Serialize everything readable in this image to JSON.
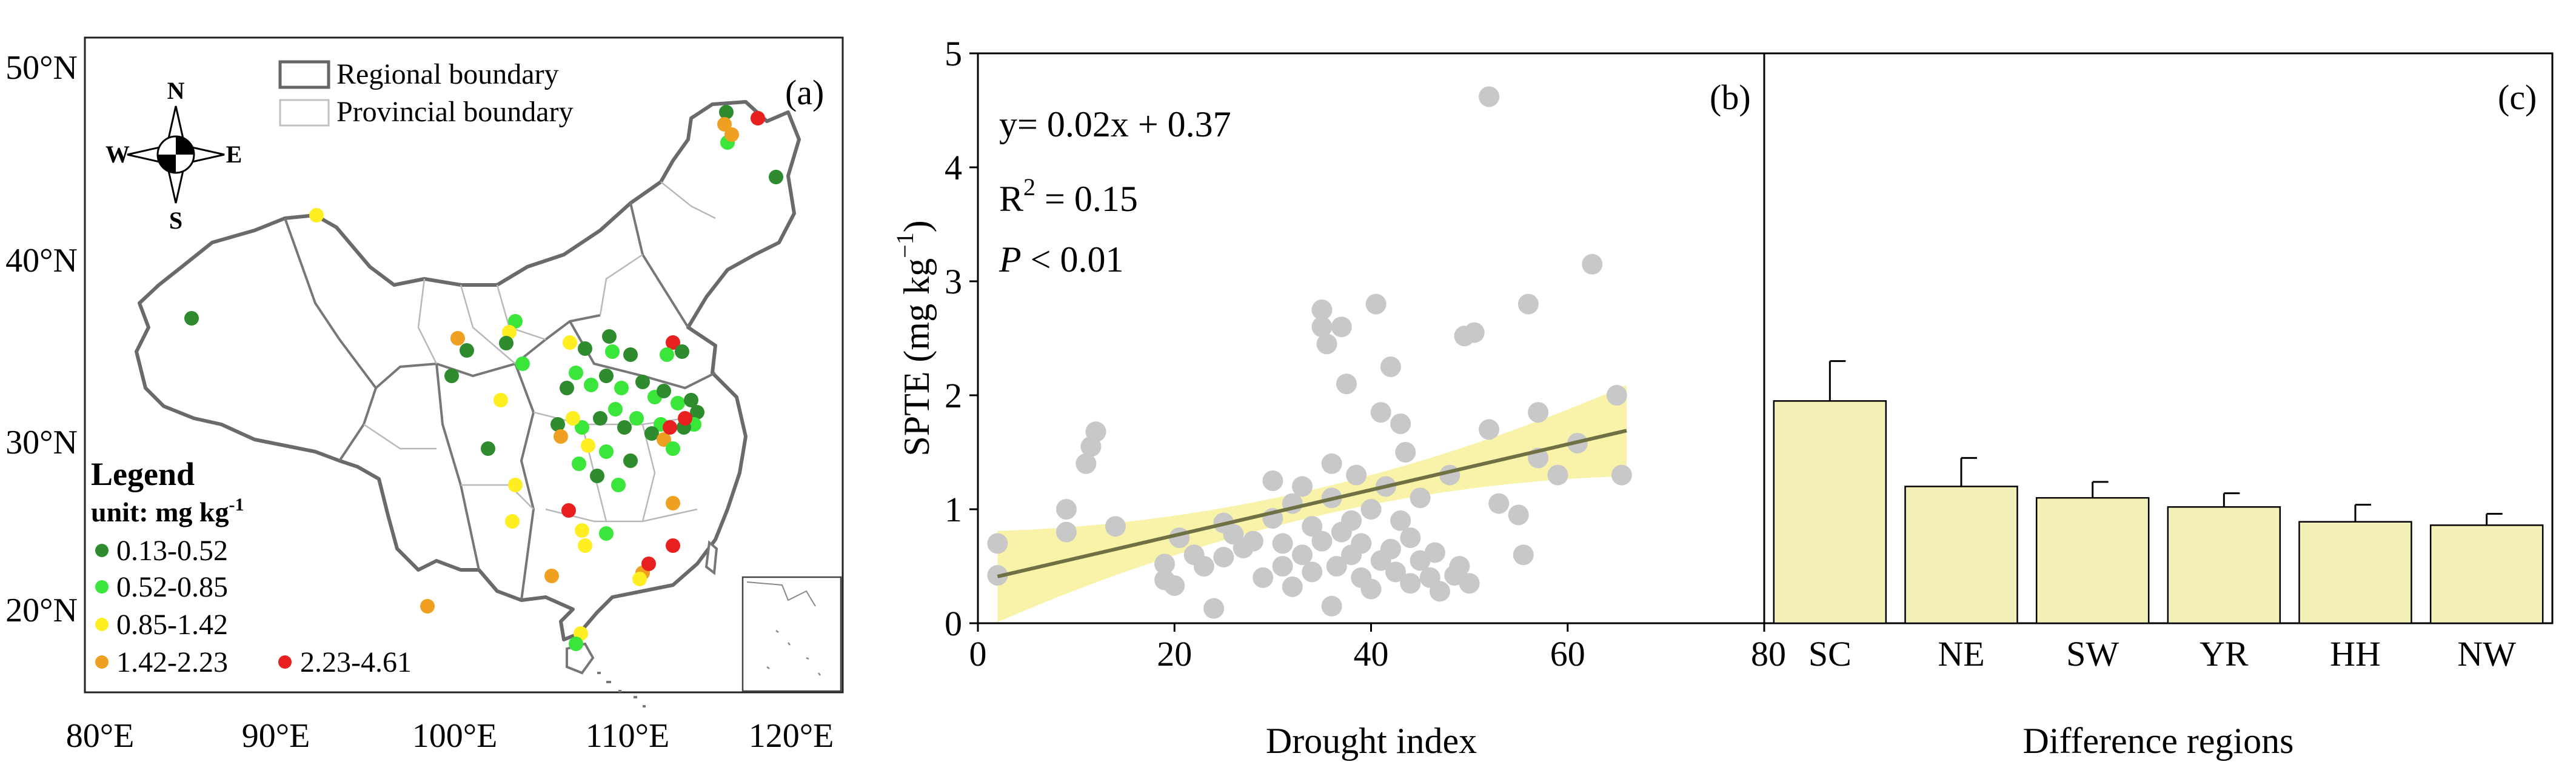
{
  "colors": {
    "dark_green": "#2e8b2e",
    "light_green": "#39e639",
    "yellow": "#ffee22",
    "orange": "#f0a020",
    "red": "#e82020",
    "scatter": "#c8c8c8",
    "band": "#f8f3a8",
    "fit": "#6f7044",
    "bar": "#f4f1b8"
  },
  "map": {
    "panel_label": "(a)",
    "lat_labels": [
      "50°N",
      "40°N",
      "30°N",
      "20°N"
    ],
    "lon_labels": [
      "80°E",
      "90°E",
      "100°E",
      "110°E",
      "120°E"
    ],
    "compass": {
      "n": "N",
      "s": "S",
      "e": "E",
      "w": "W"
    },
    "boundary_legend": [
      "Regional boundary",
      "Provincial boundary"
    ],
    "legend_title": "Legend",
    "legend_unit": "unit: mg kg",
    "legend_unit_sup": "-1",
    "classes": [
      {
        "range": "0.13-0.52",
        "color": "#2e8b2e"
      },
      {
        "range": "0.52-0.85",
        "color": "#39e639"
      },
      {
        "range": "0.85-1.42",
        "color": "#ffee22"
      },
      {
        "range": "1.42-2.23",
        "color": "#f0a020"
      },
      {
        "range": "2.23-4.61",
        "color": "#e82020"
      }
    ]
  },
  "chart_data": [
    {
      "type": "scatter",
      "panel_label": "(b)",
      "xlabel": "Drought index",
      "ylabel": "SPTE (mg kg",
      "ylabel_sup": "−1",
      "ylabel_end": ")",
      "xlim": [
        0,
        80
      ],
      "ylim": [
        0,
        5
      ],
      "xticks": [
        0,
        20,
        40,
        60,
        80
      ],
      "yticks": [
        0,
        1,
        2,
        3,
        4,
        5
      ],
      "equation": "y= 0.02x + 0.37",
      "r2_prefix": "R",
      "r2_sup": "2",
      "r2_value": " = 0.15",
      "p_symbol": "P",
      "p_value": " < 0.01",
      "fit": {
        "slope": 0.02,
        "intercept": 0.37,
        "x_range": [
          2,
          66
        ]
      },
      "points": [
        [
          2,
          0.7
        ],
        [
          2,
          0.42
        ],
        [
          9,
          1.0
        ],
        [
          9,
          0.8
        ],
        [
          11,
          1.4
        ],
        [
          11.5,
          1.55
        ],
        [
          12,
          1.68
        ],
        [
          14,
          0.85
        ],
        [
          19,
          0.52
        ],
        [
          19,
          0.38
        ],
        [
          20,
          0.33
        ],
        [
          20.5,
          0.75
        ],
        [
          22,
          0.6
        ],
        [
          23,
          0.5
        ],
        [
          24,
          0.13
        ],
        [
          25,
          0.88
        ],
        [
          25,
          0.58
        ],
        [
          26,
          0.78
        ],
        [
          27,
          0.66
        ],
        [
          28,
          0.72
        ],
        [
          29,
          0.4
        ],
        [
          30,
          0.92
        ],
        [
          30,
          1.25
        ],
        [
          31,
          0.5
        ],
        [
          31,
          0.7
        ],
        [
          32,
          1.05
        ],
        [
          32,
          0.32
        ],
        [
          33,
          0.6
        ],
        [
          33,
          1.2
        ],
        [
          34,
          0.85
        ],
        [
          34,
          0.45
        ],
        [
          35,
          2.75
        ],
        [
          35,
          2.6
        ],
        [
          35,
          0.72
        ],
        [
          35.5,
          2.45
        ],
        [
          36,
          1.1
        ],
        [
          36,
          0.15
        ],
        [
          36,
          1.4
        ],
        [
          36.5,
          0.5
        ],
        [
          37,
          0.8
        ],
        [
          37,
          2.6
        ],
        [
          37.5,
          2.1
        ],
        [
          38,
          0.9
        ],
        [
          38,
          0.6
        ],
        [
          38.5,
          1.3
        ],
        [
          39,
          0.4
        ],
        [
          39,
          0.7
        ],
        [
          40,
          1.0
        ],
        [
          40,
          0.3
        ],
        [
          40.5,
          2.8
        ],
        [
          41,
          1.85
        ],
        [
          41,
          0.55
        ],
        [
          41.5,
          1.2
        ],
        [
          42,
          0.65
        ],
        [
          42,
          2.25
        ],
        [
          42.5,
          0.45
        ],
        [
          43,
          1.75
        ],
        [
          43,
          0.9
        ],
        [
          43.5,
          1.5
        ],
        [
          44,
          0.35
        ],
        [
          44,
          0.75
        ],
        [
          45,
          0.55
        ],
        [
          45,
          1.1
        ],
        [
          46,
          0.4
        ],
        [
          46.5,
          0.62
        ],
        [
          47,
          0.28
        ],
        [
          48,
          1.3
        ],
        [
          48.5,
          0.42
        ],
        [
          49,
          0.5
        ],
        [
          49.5,
          2.52
        ],
        [
          50,
          0.35
        ],
        [
          50.5,
          2.55
        ],
        [
          52,
          4.62
        ],
        [
          52,
          1.7
        ],
        [
          53,
          1.05
        ],
        [
          55,
          0.95
        ],
        [
          55.5,
          0.6
        ],
        [
          56,
          2.8
        ],
        [
          57,
          1.45
        ],
        [
          57,
          1.85
        ],
        [
          59,
          1.3
        ],
        [
          61,
          1.58
        ],
        [
          62.5,
          3.15
        ],
        [
          65,
          2.0
        ],
        [
          65.5,
          1.3
        ]
      ]
    },
    {
      "type": "bar",
      "panel_label": "(c)",
      "xlabel": "Difference regions",
      "categories": [
        "SC",
        "NE",
        "SW",
        "YR",
        "HH",
        "NW"
      ],
      "values": [
        1.95,
        1.2,
        1.1,
        1.02,
        0.89,
        0.86
      ],
      "errors": [
        0.35,
        0.25,
        0.14,
        0.12,
        0.15,
        0.1
      ],
      "ylim": [
        0,
        5
      ]
    }
  ]
}
